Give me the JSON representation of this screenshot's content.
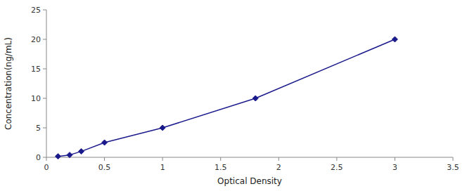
{
  "chart_data": {
    "type": "line",
    "x": [
      0.1,
      0.2,
      0.3,
      0.5,
      1.0,
      1.8,
      3.0
    ],
    "values": [
      0.16,
      0.4,
      1.0,
      2.5,
      5.0,
      10.0,
      20.0
    ],
    "color": "#1a1a8c",
    "marker": "diamond",
    "xlabel": "Optical Density",
    "ylabel": "Concentration(ng/mL)",
    "xlim": [
      0,
      3.5
    ],
    "ylim": [
      0,
      25
    ],
    "xticks": [
      0,
      0.5,
      1,
      1.5,
      2,
      2.5,
      3,
      3.5
    ],
    "yticks": [
      0,
      5,
      10,
      15,
      20,
      25
    ]
  }
}
